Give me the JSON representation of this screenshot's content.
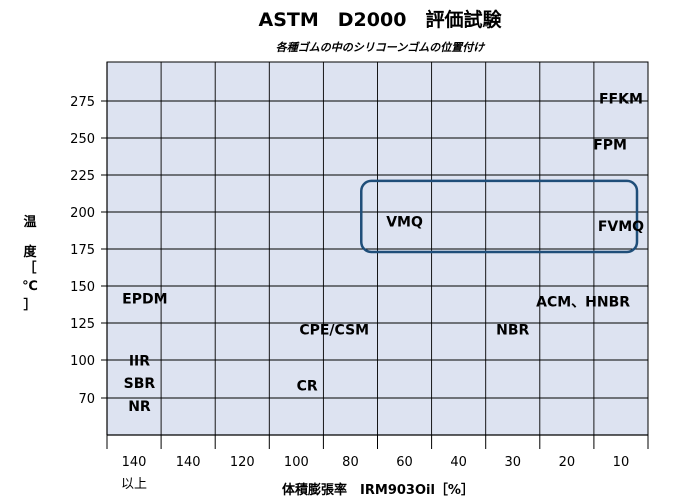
{
  "chart_data": {
    "type": "scatter",
    "title": "ASTM　D2000　評価試験",
    "subtitle": "各種ゴムの中のシリコーンゴムの位置付け",
    "xlabel": "体積膨張率　IRM903Oil［%］",
    "ylabel": [
      "温",
      "度",
      "［",
      "℃",
      "］"
    ],
    "x_tick_labels": [
      "140",
      "140",
      "120",
      "100",
      "80",
      "60",
      "40",
      "30",
      "20",
      "10"
    ],
    "x_tick_sublabels": [
      "以上",
      "",
      "",
      "",
      "",
      "",
      "",
      "",
      "",
      ""
    ],
    "y_tick_labels": [
      "70",
      "100",
      "125",
      "150",
      "175",
      "200",
      "225",
      "250",
      "275"
    ],
    "grid": true,
    "points": [
      {
        "label": "FFKM",
        "x": 9.5,
        "y": 276
      },
      {
        "label": "FPM",
        "x": 9.3,
        "y": 245
      },
      {
        "label": "VMQ",
        "x": 5.5,
        "y": 193
      },
      {
        "label": "FVMQ",
        "x": 9.5,
        "y": 190
      },
      {
        "label": "EPDM",
        "x": 0.7,
        "y": 141
      },
      {
        "label": "ACM、HNBR",
        "x": 8.8,
        "y": 139
      },
      {
        "label": "CPE/CSM",
        "x": 4.2,
        "y": 120
      },
      {
        "label": "NBR",
        "x": 7.5,
        "y": 120
      },
      {
        "label": "IIR",
        "x": 0.6,
        "y": 99
      },
      {
        "label": "SBR",
        "x": 0.6,
        "y": 81
      },
      {
        "label": "CR",
        "x": 3.7,
        "y": 79
      },
      {
        "label": "NR",
        "x": 0.6,
        "y": 63
      }
    ],
    "highlight": {
      "x_from": 4.7,
      "x_to": 10.0,
      "y_from": 173,
      "y_to": 221,
      "color": "#1f4e79"
    },
    "plot_background": "#dde3f1",
    "grid_color": "#000000"
  }
}
